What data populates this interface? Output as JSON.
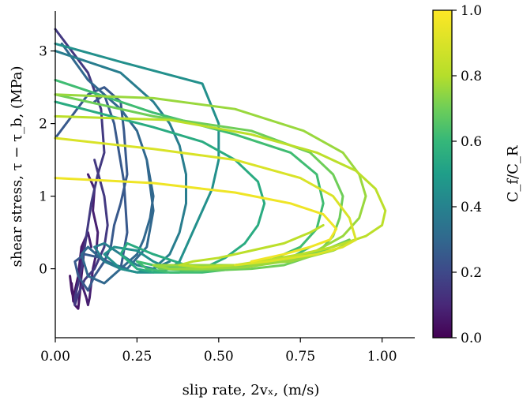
{
  "chart_data": {
    "type": "line",
    "title": "",
    "xlabel": "slip rate, 2vₓ, (m/s)",
    "ylabel": "shear stress, τ − τ_b, (MPa)",
    "xlim": [
      0.0,
      1.1
    ],
    "ylim": [
      -0.95,
      3.55
    ],
    "xticks": [
      "0.00",
      "0.25",
      "0.50",
      "0.75",
      "1.00"
    ],
    "xtick_values": [
      0.0,
      0.25,
      0.5,
      0.75,
      1.0
    ],
    "yticks": [
      "0",
      "1",
      "2",
      "3"
    ],
    "ytick_values": [
      0,
      1,
      2,
      3
    ],
    "colorbar": {
      "label": "C_f/C_R",
      "colormap": "viridis",
      "range": [
        0.0,
        1.0
      ],
      "ticks": [
        "0.0",
        "0.2",
        "0.4",
        "0.6",
        "0.8",
        "1.0"
      ],
      "tick_values": [
        0.0,
        0.2,
        0.4,
        0.6,
        0.8,
        1.0
      ]
    },
    "grid": false,
    "series": [
      {
        "c": 0.05,
        "x": [
          0.045,
          0.05,
          0.06,
          0.07,
          0.075,
          0.08,
          0.085,
          0.09,
          0.08,
          0.075,
          0.07,
          0.06,
          0.055,
          0.05
        ],
        "y": [
          -0.1,
          -0.3,
          -0.5,
          -0.55,
          -0.35,
          -0.1,
          0.1,
          0.4,
          0.3,
          0.1,
          -0.1,
          -0.3,
          -0.45,
          -0.2
        ]
      },
      {
        "c": 0.08,
        "x": [
          0.1,
          0.12,
          0.115,
          0.13,
          0.125,
          0.115,
          0.11,
          0.105,
          0.1,
          0.095,
          0.08,
          0.075,
          0.08,
          0.09,
          0.1,
          0.11
        ],
        "y": [
          1.3,
          1.1,
          0.8,
          0.5,
          0.2,
          0.0,
          -0.2,
          -0.4,
          -0.5,
          -0.4,
          -0.2,
          0.0,
          0.2,
          0.4,
          0.5,
          0.3
        ]
      },
      {
        "c": 0.15,
        "x": [
          0.0,
          0.1,
          0.14,
          0.15,
          0.13,
          0.12,
          0.11,
          0.1,
          0.09,
          0.08,
          0.07,
          0.06,
          0.06,
          0.07,
          0.09,
          0.12,
          0.15,
          0.16,
          0.15,
          0.12
        ],
        "y": [
          3.3,
          2.7,
          2.2,
          1.6,
          1.3,
          1.1,
          0.9,
          0.6,
          0.3,
          0.0,
          -0.2,
          -0.4,
          -0.5,
          -0.35,
          -0.15,
          0.0,
          0.3,
          0.6,
          1.0,
          1.5
        ]
      },
      {
        "c": 0.25,
        "x": [
          0.0,
          0.05,
          0.1,
          0.15,
          0.2,
          0.21,
          0.22,
          0.2,
          0.18,
          0.17,
          0.15,
          0.12,
          0.1,
          0.07,
          0.06,
          0.09,
          0.14,
          0.2,
          0.22,
          0.21,
          0.18,
          0.15,
          0.12
        ],
        "y": [
          1.8,
          2.1,
          2.4,
          2.5,
          2.3,
          1.9,
          1.3,
          0.9,
          0.6,
          0.3,
          0.1,
          -0.1,
          -0.3,
          -0.1,
          0.1,
          0.2,
          0.15,
          0.0,
          0.5,
          1.2,
          2.0,
          2.4,
          2.3
        ]
      },
      {
        "c": 0.3,
        "x": [
          0.02,
          0.1,
          0.2,
          0.25,
          0.28,
          0.3,
          0.29,
          0.27,
          0.25,
          0.2,
          0.15,
          0.1,
          0.08,
          0.1,
          0.15,
          0.22,
          0.28,
          0.3,
          0.28
        ],
        "y": [
          3.1,
          2.6,
          2.2,
          1.9,
          1.5,
          1.0,
          0.7,
          0.4,
          0.2,
          0.0,
          -0.2,
          -0.1,
          0.2,
          0.3,
          0.1,
          0.0,
          0.3,
          0.8,
          1.5
        ]
      },
      {
        "c": 0.38,
        "x": [
          0.0,
          0.2,
          0.3,
          0.35,
          0.38,
          0.4,
          0.4,
          0.38,
          0.35,
          0.3,
          0.25,
          0.2,
          0.15,
          0.12,
          0.15,
          0.2,
          0.25,
          0.3,
          0.35
        ],
        "y": [
          3.0,
          2.7,
          2.3,
          2.0,
          1.7,
          1.3,
          0.9,
          0.5,
          0.2,
          0.0,
          -0.05,
          0.0,
          0.1,
          0.3,
          0.35,
          0.2,
          0.05,
          0.0,
          0.1
        ]
      },
      {
        "c": 0.45,
        "x": [
          0.0,
          0.2,
          0.45,
          0.5,
          0.5,
          0.48,
          0.45,
          0.42,
          0.4,
          0.38,
          0.35,
          0.3,
          0.25,
          0.2,
          0.15,
          0.18,
          0.25,
          0.3,
          0.35,
          0.4
        ],
        "y": [
          3.1,
          2.85,
          2.55,
          2.0,
          1.5,
          1.1,
          0.8,
          0.5,
          0.3,
          0.1,
          0.0,
          -0.05,
          -0.05,
          0.0,
          0.2,
          0.3,
          0.25,
          0.1,
          0.0,
          0.05
        ]
      },
      {
        "c": 0.55,
        "x": [
          0.0,
          0.3,
          0.45,
          0.55,
          0.62,
          0.64,
          0.62,
          0.58,
          0.52,
          0.45,
          0.38,
          0.3,
          0.25,
          0.2,
          0.22,
          0.3,
          0.4,
          0.5,
          0.56
        ],
        "y": [
          2.3,
          1.95,
          1.75,
          1.5,
          1.2,
          0.9,
          0.6,
          0.35,
          0.15,
          0.0,
          -0.05,
          -0.05,
          0.0,
          0.2,
          0.35,
          0.2,
          0.05,
          0.0,
          0.05
        ]
      },
      {
        "c": 0.62,
        "x": [
          0.0,
          0.3,
          0.55,
          0.72,
          0.8,
          0.82,
          0.8,
          0.75,
          0.65,
          0.55,
          0.45,
          0.35,
          0.28,
          0.25,
          0.3,
          0.4,
          0.55,
          0.7,
          0.78
        ],
        "y": [
          2.6,
          2.15,
          1.85,
          1.6,
          1.3,
          0.9,
          0.55,
          0.3,
          0.1,
          0.0,
          -0.05,
          -0.05,
          0.0,
          0.1,
          0.05,
          0.0,
          0.02,
          0.1,
          0.3
        ]
      },
      {
        "c": 0.7,
        "x": [
          0.0,
          0.3,
          0.6,
          0.78,
          0.85,
          0.88,
          0.87,
          0.85,
          0.8,
          0.7,
          0.6,
          0.5,
          0.4,
          0.32,
          0.3,
          0.4,
          0.55,
          0.7,
          0.82,
          0.9
        ],
        "y": [
          2.4,
          2.1,
          1.9,
          1.6,
          1.3,
          1.0,
          0.7,
          0.45,
          0.2,
          0.05,
          0.0,
          -0.02,
          -0.02,
          0.0,
          0.05,
          0.03,
          0.02,
          0.1,
          0.25,
          0.4
        ]
      },
      {
        "c": 0.76,
        "x": [
          0.0,
          0.3,
          0.55,
          0.76,
          0.88,
          0.93,
          0.95,
          0.93,
          0.88,
          0.8,
          0.7,
          0.58,
          0.45,
          0.35,
          0.3,
          0.4,
          0.55,
          0.72,
          0.85,
          0.92
        ],
        "y": [
          2.4,
          2.35,
          2.2,
          1.9,
          1.6,
          1.3,
          1.0,
          0.7,
          0.45,
          0.25,
          0.1,
          0.02,
          0.0,
          0.0,
          0.05,
          0.05,
          0.05,
          0.1,
          0.25,
          0.4
        ]
      },
      {
        "c": 0.82,
        "x": [
          0.0,
          0.35,
          0.6,
          0.8,
          0.92,
          0.98,
          1.01,
          1.0,
          0.95,
          0.85,
          0.75,
          0.65,
          0.55,
          0.45,
          0.38,
          0.42,
          0.5,
          0.6,
          0.7,
          0.78,
          0.82
        ],
        "y": [
          2.1,
          2.05,
          1.85,
          1.6,
          1.35,
          1.1,
          0.8,
          0.6,
          0.45,
          0.3,
          0.2,
          0.12,
          0.05,
          0.02,
          0.05,
          0.1,
          0.15,
          0.25,
          0.35,
          0.5,
          0.6
        ]
      },
      {
        "c": 0.9,
        "x": [
          0.0,
          0.3,
          0.55,
          0.75,
          0.85,
          0.9,
          0.92,
          0.88,
          0.8,
          0.65,
          0.55
        ],
        "y": [
          1.8,
          1.65,
          1.5,
          1.25,
          1.0,
          0.7,
          0.4,
          0.3,
          0.2,
          0.1,
          0.05
        ]
      },
      {
        "c": 0.96,
        "x": [
          0.0,
          0.3,
          0.55,
          0.72,
          0.82,
          0.86,
          0.84,
          0.78,
          0.7,
          0.6
        ],
        "y": [
          1.25,
          1.18,
          1.05,
          0.9,
          0.75,
          0.55,
          0.4,
          0.3,
          0.2,
          0.1
        ]
      }
    ]
  }
}
